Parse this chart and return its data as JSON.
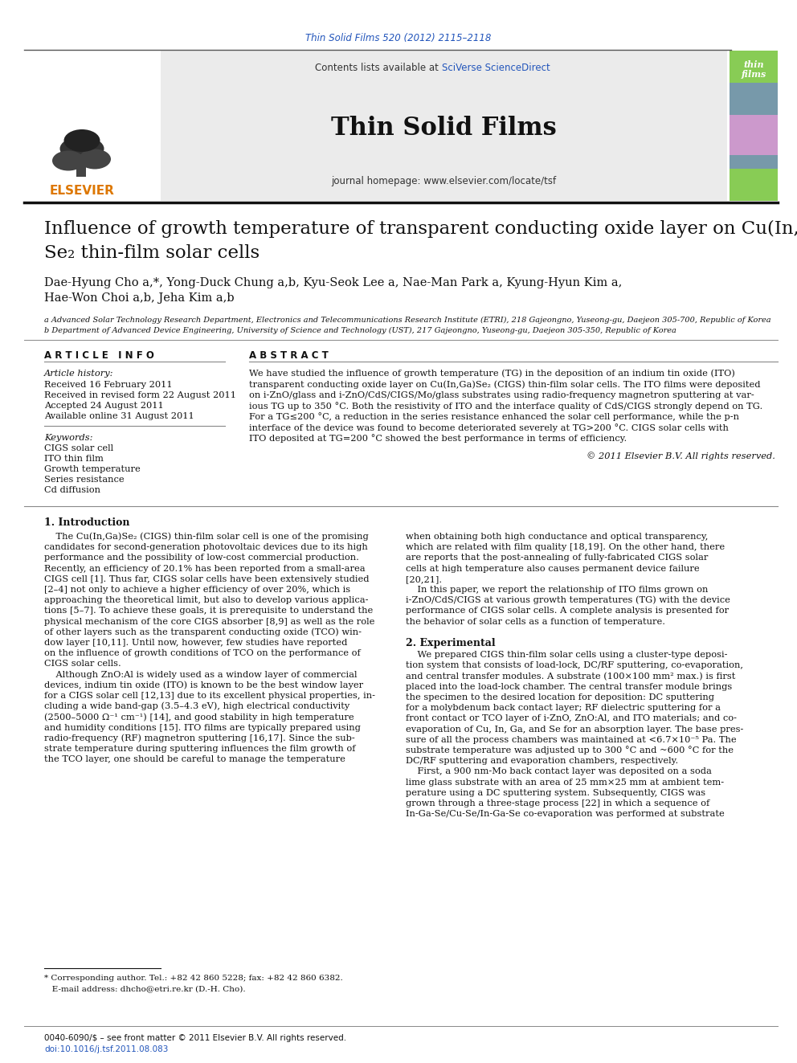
{
  "journal_citation": "Thin Solid Films 520 (2012) 2115–2118",
  "journal_name": "Thin Solid Films",
  "journal_homepage": "journal homepage: www.elsevier.com/locate/tsf",
  "contents_text": "Contents lists available at ",
  "sciverse_text": "SciVerse ScienceDirect",
  "elsevier_text": "ELSEVIER",
  "title_line1": "Influence of growth temperature of transparent conducting oxide layer on Cu(In,Ga)",
  "title_line2": "Se₂ thin-film solar cells",
  "authors_line1": "Dae-Hyung Cho a,*, Yong-Duck Chung a,b, Kyu-Seok Lee a, Nae-Man Park a, Kyung-Hyun Kim a,",
  "authors_line2": "Hae-Won Choi a,b, Jeha Kim a,b",
  "affil_a": "a Advanced Solar Technology Research Department, Electronics and Telecommunications Research Institute (ETRI), 218 Gajeongno, Yuseong-gu, Daejeon 305-700, Republic of Korea",
  "affil_b": "b Department of Advanced Device Engineering, University of Science and Technology (UST), 217 Gajeongno, Yuseong-gu, Daejeon 305-350, Republic of Korea",
  "article_info_title": "A R T I C L E   I N F O",
  "article_history_title": "Article history:",
  "received": "Received 16 February 2011",
  "revised": "Received in revised form 22 August 2011",
  "accepted": "Accepted 24 August 2011",
  "online": "Available online 31 August 2011",
  "keywords_title": "Keywords:",
  "keywords": [
    "CIGS solar cell",
    "ITO thin film",
    "Growth temperature",
    "Series resistance",
    "Cd diffusion"
  ],
  "abstract_title": "A B S T R A C T",
  "abstract_lines": [
    "We have studied the influence of growth temperature (TG) in the deposition of an indium tin oxide (ITO)",
    "transparent conducting oxide layer on Cu(In,Ga)Se₂ (CIGS) thin-film solar cells. The ITO films were deposited",
    "on i-ZnO/glass and i-ZnO/CdS/CIGS/Mo/glass substrates using radio-frequency magnetron sputtering at var-",
    "ious TG up to 350 °C. Both the resistivity of ITO and the interface quality of CdS/CIGS strongly depend on TG.",
    "For a TG≤200 °C, a reduction in the series resistance enhanced the solar cell performance, while the p-n",
    "interface of the device was found to become deteriorated severely at TG>200 °C. CIGS solar cells with",
    "ITO deposited at TG=200 °C showed the best performance in terms of efficiency."
  ],
  "copyright": "© 2011 Elsevier B.V. All rights reserved.",
  "section1_title": "1. Introduction",
  "intro_left_lines": [
    "    The Cu(In,Ga)Se₂ (CIGS) thin-film solar cell is one of the promising",
    "candidates for second-generation photovoltaic devices due to its high",
    "performance and the possibility of low-cost commercial production.",
    "Recently, an efficiency of 20.1% has been reported from a small-area",
    "CIGS cell [1]. Thus far, CIGS solar cells have been extensively studied",
    "[2–4] not only to achieve a higher efficiency of over 20%, which is",
    "approaching the theoretical limit, but also to develop various applica-",
    "tions [5–7]. To achieve these goals, it is prerequisite to understand the",
    "physical mechanism of the core CIGS absorber [8,9] as well as the role",
    "of other layers such as the transparent conducting oxide (TCO) win-",
    "dow layer [10,11]. Until now, however, few studies have reported",
    "on the influence of growth conditions of TCO on the performance of",
    "CIGS solar cells.",
    "    Although ZnO:Al is widely used as a window layer of commercial",
    "devices, indium tin oxide (ITO) is known to be the best window layer",
    "for a CIGS solar cell [12,13] due to its excellent physical properties, in-",
    "cluding a wide band-gap (3.5–4.3 eV), high electrical conductivity",
    "(2500–5000 Ω⁻¹ cm⁻¹) [14], and good stability in high temperature",
    "and humidity conditions [15]. ITO films are typically prepared using",
    "radio-frequency (RF) magnetron sputtering [16,17]. Since the sub-",
    "strate temperature during sputtering influences the film growth of",
    "the TCO layer, one should be careful to manage the temperature"
  ],
  "intro_right_lines": [
    "when obtaining both high conductance and optical transparency,",
    "which are related with film quality [18,19]. On the other hand, there",
    "are reports that the post-annealing of fully-fabricated CIGS solar",
    "cells at high temperature also causes permanent device failure",
    "[20,21].",
    "    In this paper, we report the relationship of ITO films grown on",
    "i-ZnO/CdS/CIGS at various growth temperatures (TG) with the device",
    "performance of CIGS solar cells. A complete analysis is presented for",
    "the behavior of solar cells as a function of temperature."
  ],
  "section2_title": "2. Experimental",
  "exp_right_lines": [
    "    We prepared CIGS thin-film solar cells using a cluster-type deposi-",
    "tion system that consists of load-lock, DC/RF sputtering, co-evaporation,",
    "and central transfer modules. A substrate (100×100 mm² max.) is first",
    "placed into the load-lock chamber. The central transfer module brings",
    "the specimen to the desired location for deposition: DC sputtering",
    "for a molybdenum back contact layer; RF dielectric sputtering for a",
    "front contact or TCO layer of i-ZnO, ZnO:Al, and ITO materials; and co-",
    "evaporation of Cu, In, Ga, and Se for an absorption layer. The base pres-",
    "sure of all the process chambers was maintained at <6.7×10⁻⁵ Pa. The",
    "substrate temperature was adjusted up to 300 °C and ~600 °C for the",
    "DC/RF sputtering and evaporation chambers, respectively.",
    "    First, a 900 nm-Mo back contact layer was deposited on a soda",
    "lime glass substrate with an area of 25 mm×25 mm at ambient tem-",
    "perature using a DC sputtering system. Subsequently, CIGS was",
    "grown through a three-stage process [22] in which a sequence of",
    "In-Ga-Se/Cu-Se/In-Ga-Se co-evaporation was performed at substrate"
  ],
  "footnote_line": "* Corresponding author. Tel.: +82 42 860 5228; fax: +82 42 860 6382.",
  "footnote_email": "   E-mail address: dhcho@etri.re.kr (D.-H. Cho).",
  "issn": "0040-6090/$ – see front matter © 2011 Elsevier B.V. All rights reserved.",
  "doi": "doi:10.1016/j.tsf.2011.08.083",
  "blue_color": "#2255bb",
  "orange_color": "#dd7700",
  "divider_color": "#888888",
  "text_color": "#111111"
}
